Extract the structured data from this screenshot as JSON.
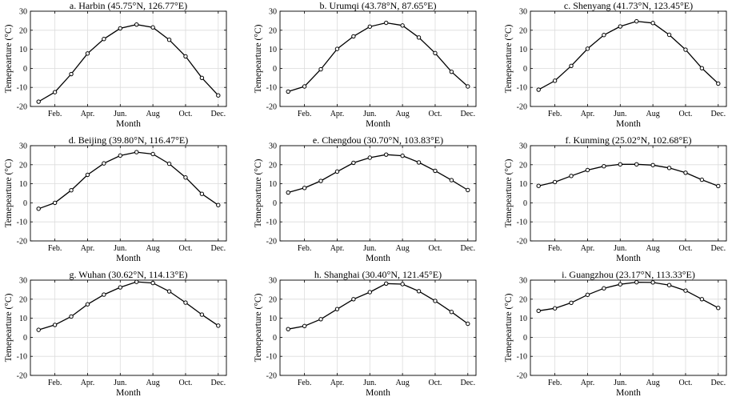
{
  "figure": {
    "description_label": "Monthly mean temperature at nine Chinese cities"
  },
  "chart_data": [
    {
      "type": "line",
      "title": "a. Harbin (45.75°N, 126.77°E)",
      "xlabel": "Month",
      "ylabel": "Temepearture (°C)",
      "ylim": [
        -20,
        30
      ],
      "yticks": [
        -20,
        -10,
        0,
        10,
        20,
        30
      ],
      "xtick_labels": [
        "Feb.",
        "Apr.",
        "Jun.",
        "Aug",
        "Oct.",
        "Dec."
      ],
      "xtick_months": [
        2,
        4,
        6,
        8,
        10,
        12
      ],
      "x": [
        1,
        2,
        3,
        4,
        5,
        6,
        7,
        8,
        9,
        10,
        11,
        12
      ],
      "values": [
        -17.5,
        -12.5,
        -3,
        7.8,
        15.4,
        21,
        23,
        21.5,
        15,
        6.3,
        -5,
        -14.2
      ],
      "grid": true
    },
    {
      "type": "line",
      "title": "b. Urumqi (43.78°N, 87.65°E)",
      "xlabel": "Month",
      "ylabel": "Temepearture (°C)",
      "ylim": [
        -20,
        30
      ],
      "yticks": [
        -20,
        -10,
        0,
        10,
        20,
        30
      ],
      "xtick_labels": [
        "Feb.",
        "Apr.",
        "Jun.",
        "Aug",
        "Oct.",
        "Dec."
      ],
      "xtick_months": [
        2,
        4,
        6,
        8,
        10,
        12
      ],
      "x": [
        1,
        2,
        3,
        4,
        5,
        6,
        7,
        8,
        9,
        10,
        11,
        12
      ],
      "values": [
        -12.2,
        -9.5,
        -0.5,
        10.2,
        16.8,
        21.9,
        23.9,
        22.5,
        16.2,
        8,
        -1.8,
        -9.5
      ],
      "grid": true
    },
    {
      "type": "line",
      "title": "c. Shenyang (41.73°N, 123.45°E)",
      "xlabel": "Month",
      "ylabel": "Temepearture (°C)",
      "ylim": [
        -20,
        30
      ],
      "yticks": [
        -20,
        -10,
        0,
        10,
        20,
        30
      ],
      "xtick_labels": [
        "Feb.",
        "Apr.",
        "Jun.",
        "Aug",
        "Oct.",
        "Dec."
      ],
      "xtick_months": [
        2,
        4,
        6,
        8,
        10,
        12
      ],
      "x": [
        1,
        2,
        3,
        4,
        5,
        6,
        7,
        8,
        9,
        10,
        11,
        12
      ],
      "values": [
        -11.2,
        -6.5,
        1.3,
        10.3,
        17.5,
        22,
        24.7,
        23.8,
        17.6,
        9.8,
        0.1,
        -8
      ],
      "grid": true
    },
    {
      "type": "line",
      "title": "d. Beijing (39.80°N, 116.47°E)",
      "xlabel": "Month",
      "ylabel": "Temepearture (°C)",
      "ylim": [
        -20,
        30
      ],
      "yticks": [
        -20,
        -10,
        0,
        10,
        20,
        30
      ],
      "xtick_labels": [
        "Feb.",
        "Apr.",
        "Jun.",
        "Aug",
        "Oct.",
        "Dec."
      ],
      "xtick_months": [
        2,
        4,
        6,
        8,
        10,
        12
      ],
      "x": [
        1,
        2,
        3,
        4,
        5,
        6,
        7,
        8,
        9,
        10,
        11,
        12
      ],
      "values": [
        -3.1,
        0,
        6.6,
        14.7,
        20.7,
        24.8,
        26.6,
        25.6,
        20.5,
        13.3,
        4.7,
        -1.2
      ],
      "grid": true
    },
    {
      "type": "line",
      "title": "e. Chengdou (30.70°N, 103.83°E)",
      "xlabel": "Month",
      "ylabel": "Temepearture (°C)",
      "ylim": [
        -20,
        30
      ],
      "yticks": [
        -20,
        -10,
        0,
        10,
        20,
        30
      ],
      "xtick_labels": [
        "Feb.",
        "Apr.",
        "Jun.",
        "Aug",
        "Oct.",
        "Dec."
      ],
      "xtick_months": [
        2,
        4,
        6,
        8,
        10,
        12
      ],
      "x": [
        1,
        2,
        3,
        4,
        5,
        6,
        7,
        8,
        9,
        10,
        11,
        12
      ],
      "values": [
        5.4,
        7.8,
        11.5,
        16.4,
        21,
        23.7,
        25.3,
        24.7,
        21.2,
        16.8,
        11.9,
        6.7
      ],
      "grid": true
    },
    {
      "type": "line",
      "title": "f. Kunming (25.02°N, 102.68°E)",
      "xlabel": "Month",
      "ylabel": "Temepearture (°C)",
      "ylim": [
        -20,
        30
      ],
      "yticks": [
        -20,
        -10,
        0,
        10,
        20,
        30
      ],
      "xtick_labels": [
        "Feb.",
        "Apr.",
        "Jun.",
        "Aug",
        "Oct.",
        "Dec."
      ],
      "xtick_months": [
        2,
        4,
        6,
        8,
        10,
        12
      ],
      "x": [
        1,
        2,
        3,
        4,
        5,
        6,
        7,
        8,
        9,
        10,
        11,
        12
      ],
      "values": [
        8.9,
        10.9,
        14.1,
        17.2,
        19.2,
        20.2,
        20.2,
        19.8,
        18.3,
        15.8,
        12.1,
        8.8
      ],
      "grid": true
    },
    {
      "type": "line",
      "title": "g. Wuhan (30.62°N, 114.13°E)",
      "xlabel": "Month",
      "ylabel": "Temepearture (°C)",
      "ylim": [
        -20,
        30
      ],
      "yticks": [
        -20,
        -10,
        0,
        10,
        20,
        30
      ],
      "xtick_labels": [
        "Feb.",
        "Apr.",
        "Jun.",
        "Aug",
        "Oct.",
        "Dec."
      ],
      "xtick_months": [
        2,
        4,
        6,
        8,
        10,
        12
      ],
      "x": [
        1,
        2,
        3,
        4,
        5,
        6,
        7,
        8,
        9,
        10,
        11,
        12
      ],
      "values": [
        3.9,
        6.5,
        10.9,
        17.3,
        22.4,
        26.2,
        29.1,
        28.5,
        24.1,
        18.2,
        11.9,
        6.1
      ],
      "grid": true
    },
    {
      "type": "line",
      "title": "h. Shanghai (30.40°N, 121.45°E)",
      "xlabel": "Month",
      "ylabel": "Temepearture (°C)",
      "ylim": [
        -20,
        30
      ],
      "yticks": [
        -20,
        -10,
        0,
        10,
        20,
        30
      ],
      "xtick_labels": [
        "Feb.",
        "Apr.",
        "Jun.",
        "Aug",
        "Oct.",
        "Dec."
      ],
      "xtick_months": [
        2,
        4,
        6,
        8,
        10,
        12
      ],
      "x": [
        1,
        2,
        3,
        4,
        5,
        6,
        7,
        8,
        9,
        10,
        11,
        12
      ],
      "values": [
        4.3,
        5.9,
        9.5,
        14.8,
        20,
        23.7,
        28.2,
        27.9,
        24.2,
        19.1,
        13.3,
        7.1
      ],
      "grid": true
    },
    {
      "type": "line",
      "title": "i. Guangzhou (23.17°N, 113.33°E)",
      "xlabel": "Month",
      "ylabel": "Temepearture (°C)",
      "ylim": [
        -20,
        30
      ],
      "yticks": [
        -20,
        -10,
        0,
        10,
        20,
        30
      ],
      "xtick_labels": [
        "Feb.",
        "Apr.",
        "Jun.",
        "Aug",
        "Oct.",
        "Dec."
      ],
      "xtick_months": [
        2,
        4,
        6,
        8,
        10,
        12
      ],
      "x": [
        1,
        2,
        3,
        4,
        5,
        6,
        7,
        8,
        9,
        10,
        11,
        12
      ],
      "values": [
        13.9,
        15.2,
        18.1,
        22.3,
        25.7,
        27.8,
        28.9,
        28.8,
        27.4,
        24.5,
        20,
        15.4
      ],
      "grid": true
    }
  ]
}
